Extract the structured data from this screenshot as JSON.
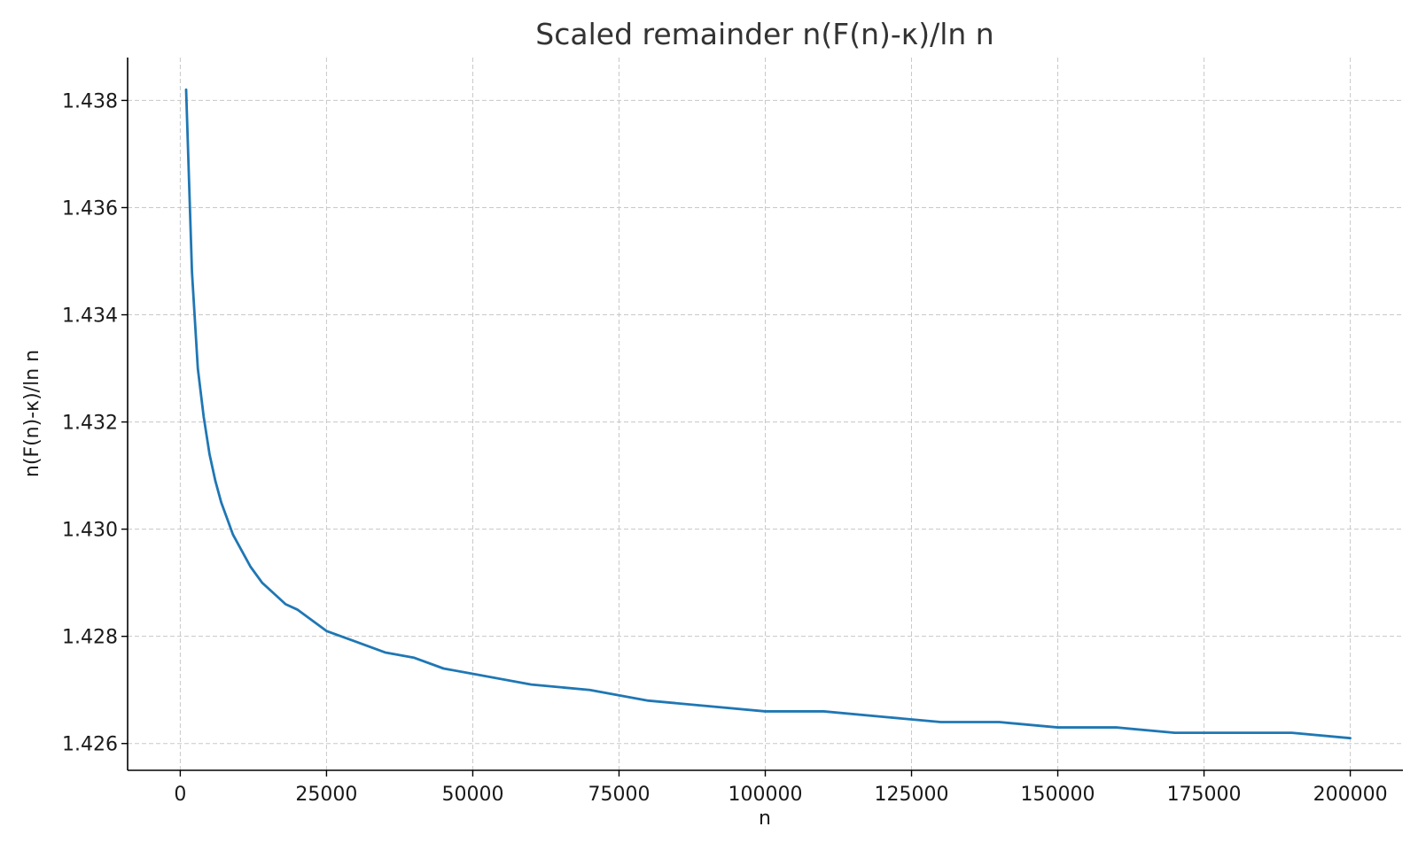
{
  "chart_data": {
    "type": "line",
    "title": "Scaled remainder n(F(n)-κ)/ln n",
    "xlabel": "n",
    "ylabel": "n(F(n)-κ)/ln n",
    "xlim": [
      -9000,
      209000
    ],
    "ylim": [
      1.4255,
      1.4388
    ],
    "xticks": [
      0,
      25000,
      50000,
      75000,
      100000,
      125000,
      150000,
      175000,
      200000
    ],
    "xtick_labels": [
      "0",
      "25000",
      "50000",
      "75000",
      "100000",
      "125000",
      "150000",
      "175000",
      "200000"
    ],
    "yticks": [
      1.426,
      1.428,
      1.43,
      1.432,
      1.434,
      1.436,
      1.438
    ],
    "ytick_labels": [
      "1.426",
      "1.428",
      "1.430",
      "1.432",
      "1.434",
      "1.436",
      "1.438"
    ],
    "grid": true,
    "series": [
      {
        "color": "#1f77b4",
        "x": [
          1000,
          2000,
          3000,
          4000,
          5000,
          6000,
          7000,
          8000,
          9000,
          10000,
          12000,
          14000,
          16000,
          18000,
          20000,
          25000,
          30000,
          35000,
          40000,
          45000,
          50000,
          60000,
          70000,
          80000,
          90000,
          100000,
          110000,
          120000,
          130000,
          140000,
          150000,
          160000,
          170000,
          180000,
          190000,
          200000
        ],
        "y": [
          1.4382,
          1.4348,
          1.433,
          1.4321,
          1.4314,
          1.4309,
          1.4305,
          1.4302,
          1.4299,
          1.4297,
          1.4293,
          1.429,
          1.4288,
          1.4286,
          1.4285,
          1.4281,
          1.4279,
          1.4277,
          1.4276,
          1.4274,
          1.4273,
          1.4271,
          1.427,
          1.4268,
          1.4267,
          1.4266,
          1.4266,
          1.4265,
          1.4264,
          1.4264,
          1.4263,
          1.4263,
          1.4262,
          1.4262,
          1.4262,
          1.4261
        ]
      }
    ]
  }
}
